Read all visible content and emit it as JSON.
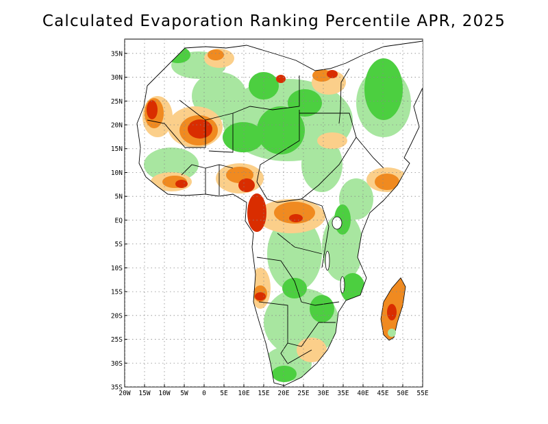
{
  "title": "Calculated Evaporation Ranking Percentile APR, 2025",
  "map": {
    "region": "Africa",
    "lon_range": [
      -20,
      55
    ],
    "lat_range": [
      -35,
      38
    ],
    "grid": "dotted",
    "lon_ticks": [
      "20W",
      "15W",
      "10W",
      "5W",
      "0",
      "5E",
      "10E",
      "15E",
      "20E",
      "25E",
      "30E",
      "35E",
      "40E",
      "45E",
      "50E",
      "55E"
    ],
    "lat_ticks": [
      "35N",
      "30N",
      "25N",
      "20N",
      "15N",
      "10N",
      "5N",
      "EQ",
      "5S",
      "10S",
      "15S",
      "20S",
      "25S",
      "30S",
      "35S"
    ],
    "colors": {
      "very_high": "#d92d00",
      "high": "#f08a20",
      "above": "#fbcf8a",
      "below": "#a8e6a0",
      "low": "#4ccf40",
      "neutral": "#ffffff",
      "outline": "#000000"
    }
  }
}
